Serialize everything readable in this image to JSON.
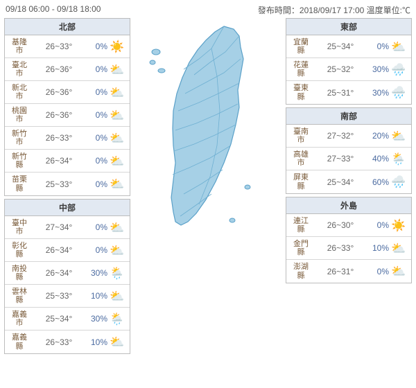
{
  "header": {
    "time_range": "09/18 06:00 - 09/18 18:00",
    "issued_label": "發布時間：",
    "issued_time": "2018/09/17 17:00",
    "unit_label": "溫度單位:℃"
  },
  "colors": {
    "header_bg": "#e2e9f2",
    "border": "#bcbcbc",
    "loc_text": "#7a5b3a",
    "temp_text": "#666666",
    "pop_text": "#4a6aa0",
    "map_fill": "#a6d0e6",
    "map_stroke": "#5aa0c8"
  },
  "icons": {
    "sunny": "☀️",
    "cloudy": "⛅",
    "rain": "🌧️",
    "shower": "🌦️"
  },
  "regions_left": [
    {
      "title": "北部",
      "rows": [
        {
          "loc": "基隆市",
          "temp": "26~33°",
          "pop": "0%",
          "icon": "sunny"
        },
        {
          "loc": "臺北市",
          "temp": "26~36°",
          "pop": "0%",
          "icon": "cloudy"
        },
        {
          "loc": "新北市",
          "temp": "26~36°",
          "pop": "0%",
          "icon": "cloudy"
        },
        {
          "loc": "桃園市",
          "temp": "26~36°",
          "pop": "0%",
          "icon": "cloudy"
        },
        {
          "loc": "新竹市",
          "temp": "26~33°",
          "pop": "0%",
          "icon": "cloudy"
        },
        {
          "loc": "新竹縣",
          "temp": "26~34°",
          "pop": "0%",
          "icon": "cloudy"
        },
        {
          "loc": "苗栗縣",
          "temp": "25~33°",
          "pop": "0%",
          "icon": "cloudy"
        }
      ]
    },
    {
      "title": "中部",
      "rows": [
        {
          "loc": "臺中市",
          "temp": "27~34°",
          "pop": "0%",
          "icon": "cloudy"
        },
        {
          "loc": "彰化縣",
          "temp": "26~34°",
          "pop": "0%",
          "icon": "cloudy"
        },
        {
          "loc": "南投縣",
          "temp": "26~34°",
          "pop": "30%",
          "icon": "shower"
        },
        {
          "loc": "雲林縣",
          "temp": "25~33°",
          "pop": "10%",
          "icon": "cloudy"
        },
        {
          "loc": "嘉義市",
          "temp": "25~34°",
          "pop": "30%",
          "icon": "shower"
        },
        {
          "loc": "嘉義縣",
          "temp": "26~33°",
          "pop": "10%",
          "icon": "cloudy"
        }
      ]
    }
  ],
  "regions_right": [
    {
      "title": "東部",
      "rows": [
        {
          "loc": "宜蘭縣",
          "temp": "25~34°",
          "pop": "0%",
          "icon": "cloudy"
        },
        {
          "loc": "花蓮縣",
          "temp": "25~32°",
          "pop": "30%",
          "icon": "rain"
        },
        {
          "loc": "臺東縣",
          "temp": "25~31°",
          "pop": "30%",
          "icon": "rain"
        }
      ]
    },
    {
      "title": "南部",
      "rows": [
        {
          "loc": "臺南市",
          "temp": "27~32°",
          "pop": "20%",
          "icon": "cloudy"
        },
        {
          "loc": "高雄市",
          "temp": "27~33°",
          "pop": "40%",
          "icon": "shower"
        },
        {
          "loc": "屏東縣",
          "temp": "25~34°",
          "pop": "60%",
          "icon": "rain"
        }
      ]
    },
    {
      "title": "外島",
      "rows": [
        {
          "loc": "連江縣",
          "temp": "26~30°",
          "pop": "0%",
          "icon": "sunny"
        },
        {
          "loc": "金門縣",
          "temp": "26~33°",
          "pop": "10%",
          "icon": "cloudy"
        },
        {
          "loc": "澎湖縣",
          "temp": "26~31°",
          "pop": "0%",
          "icon": "cloudy"
        }
      ]
    }
  ]
}
